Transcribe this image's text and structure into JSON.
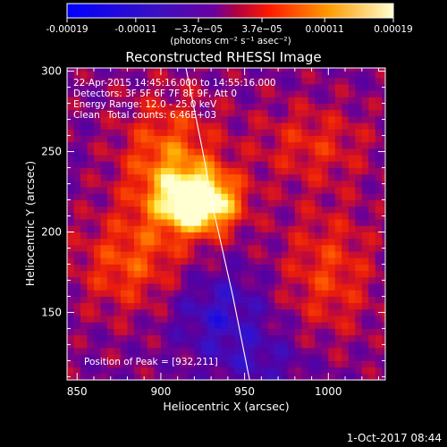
{
  "colorbar": {
    "ticks": [
      "-0.00019",
      "-0.00011",
      "−3.7e−05",
      "3.7e−05",
      "0.00011",
      "0.00019"
    ],
    "tick_values": [
      -0.00019,
      -0.00011,
      -3.7e-05,
      3.7e-05,
      0.00011,
      0.00019
    ],
    "range": [
      -0.00019,
      0.00019
    ],
    "units_label": "(photons cm⁻² s⁻¹ asec⁻²)"
  },
  "image_info": {
    "time": "22-Apr-2015 14:45:16.000 to 14:55:16.000",
    "detectors": "Detectors: 3F 5F 6F 7F 8F 9F, Att 0",
    "energy": "Energy Range: 12.0 - 25.0 keV",
    "method": "Clean",
    "counts": "Total counts: 6.46E+03",
    "peak": "Position of Peak = [932,211]"
  },
  "footer": {
    "date": "1-Oct-2017 08:44"
  },
  "chart_data": {
    "type": "heatmap",
    "title": "Reconstructed RHESSI Image",
    "xlabel": "Heliocentric X (arcsec)",
    "ylabel": "Heliocentric Y (arcsec)",
    "xlim": [
      844,
      1034
    ],
    "ylim": [
      108,
      302
    ],
    "xticks": [
      "850",
      "900",
      "950",
      "1000"
    ],
    "xtick_values": [
      850,
      900,
      950,
      1000
    ],
    "yticks": [
      "150",
      "200",
      "250",
      "300"
    ],
    "ytick_values": [
      150,
      200,
      250,
      300
    ],
    "peak": {
      "x": 932,
      "y": 211
    },
    "limb_line": [
      [
        915,
        302
      ],
      [
        925,
        250
      ],
      [
        932,
        211
      ],
      [
        943,
        160
      ],
      [
        953,
        108
      ]
    ],
    "colors": [
      "#0000ff",
      "#5000b4",
      "#7a00aa",
      "#d01428",
      "#ff4a00",
      "#ffb000",
      "#ffffc8"
    ]
  }
}
